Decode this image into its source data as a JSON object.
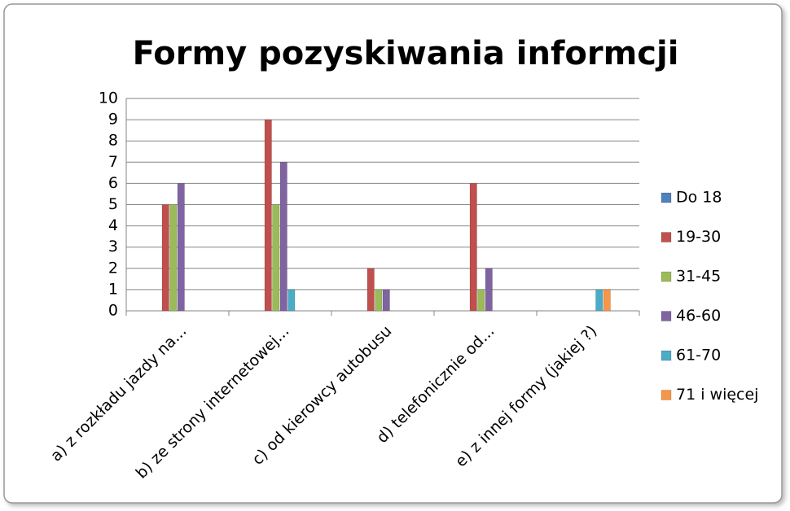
{
  "chart_data": {
    "type": "bar",
    "title": "Formy pozyskiwania informcji",
    "categories": [
      "a) z rozkładu jazdy na...",
      "b) ze strony internetowej...",
      "c) od kierowcy autobusu",
      "d) telefonicznie od...",
      "e)  z innej formy (jakiej ?)"
    ],
    "series": [
      {
        "name": "Do 18",
        "color": "#4f81bd",
        "values": [
          0,
          0,
          0,
          0,
          0
        ]
      },
      {
        "name": "19-30",
        "color": "#c0504d",
        "values": [
          5,
          9,
          2,
          6,
          0
        ]
      },
      {
        "name": "31-45",
        "color": "#9bbb59",
        "values": [
          5,
          5,
          1,
          1,
          0
        ]
      },
      {
        "name": "46-60",
        "color": "#8064a2",
        "values": [
          6,
          7,
          1,
          2,
          0
        ]
      },
      {
        "name": "61-70",
        "color": "#4bacc6",
        "values": [
          0,
          1,
          0,
          0,
          1
        ]
      },
      {
        "name": "71 i więcej",
        "color": "#f79646",
        "values": [
          0,
          0,
          0,
          0,
          1
        ]
      }
    ],
    "ylim": [
      0,
      10
    ],
    "yticks": [
      0,
      1,
      2,
      3,
      4,
      5,
      6,
      7,
      8,
      9,
      10
    ],
    "grid": true,
    "legend": "right"
  }
}
